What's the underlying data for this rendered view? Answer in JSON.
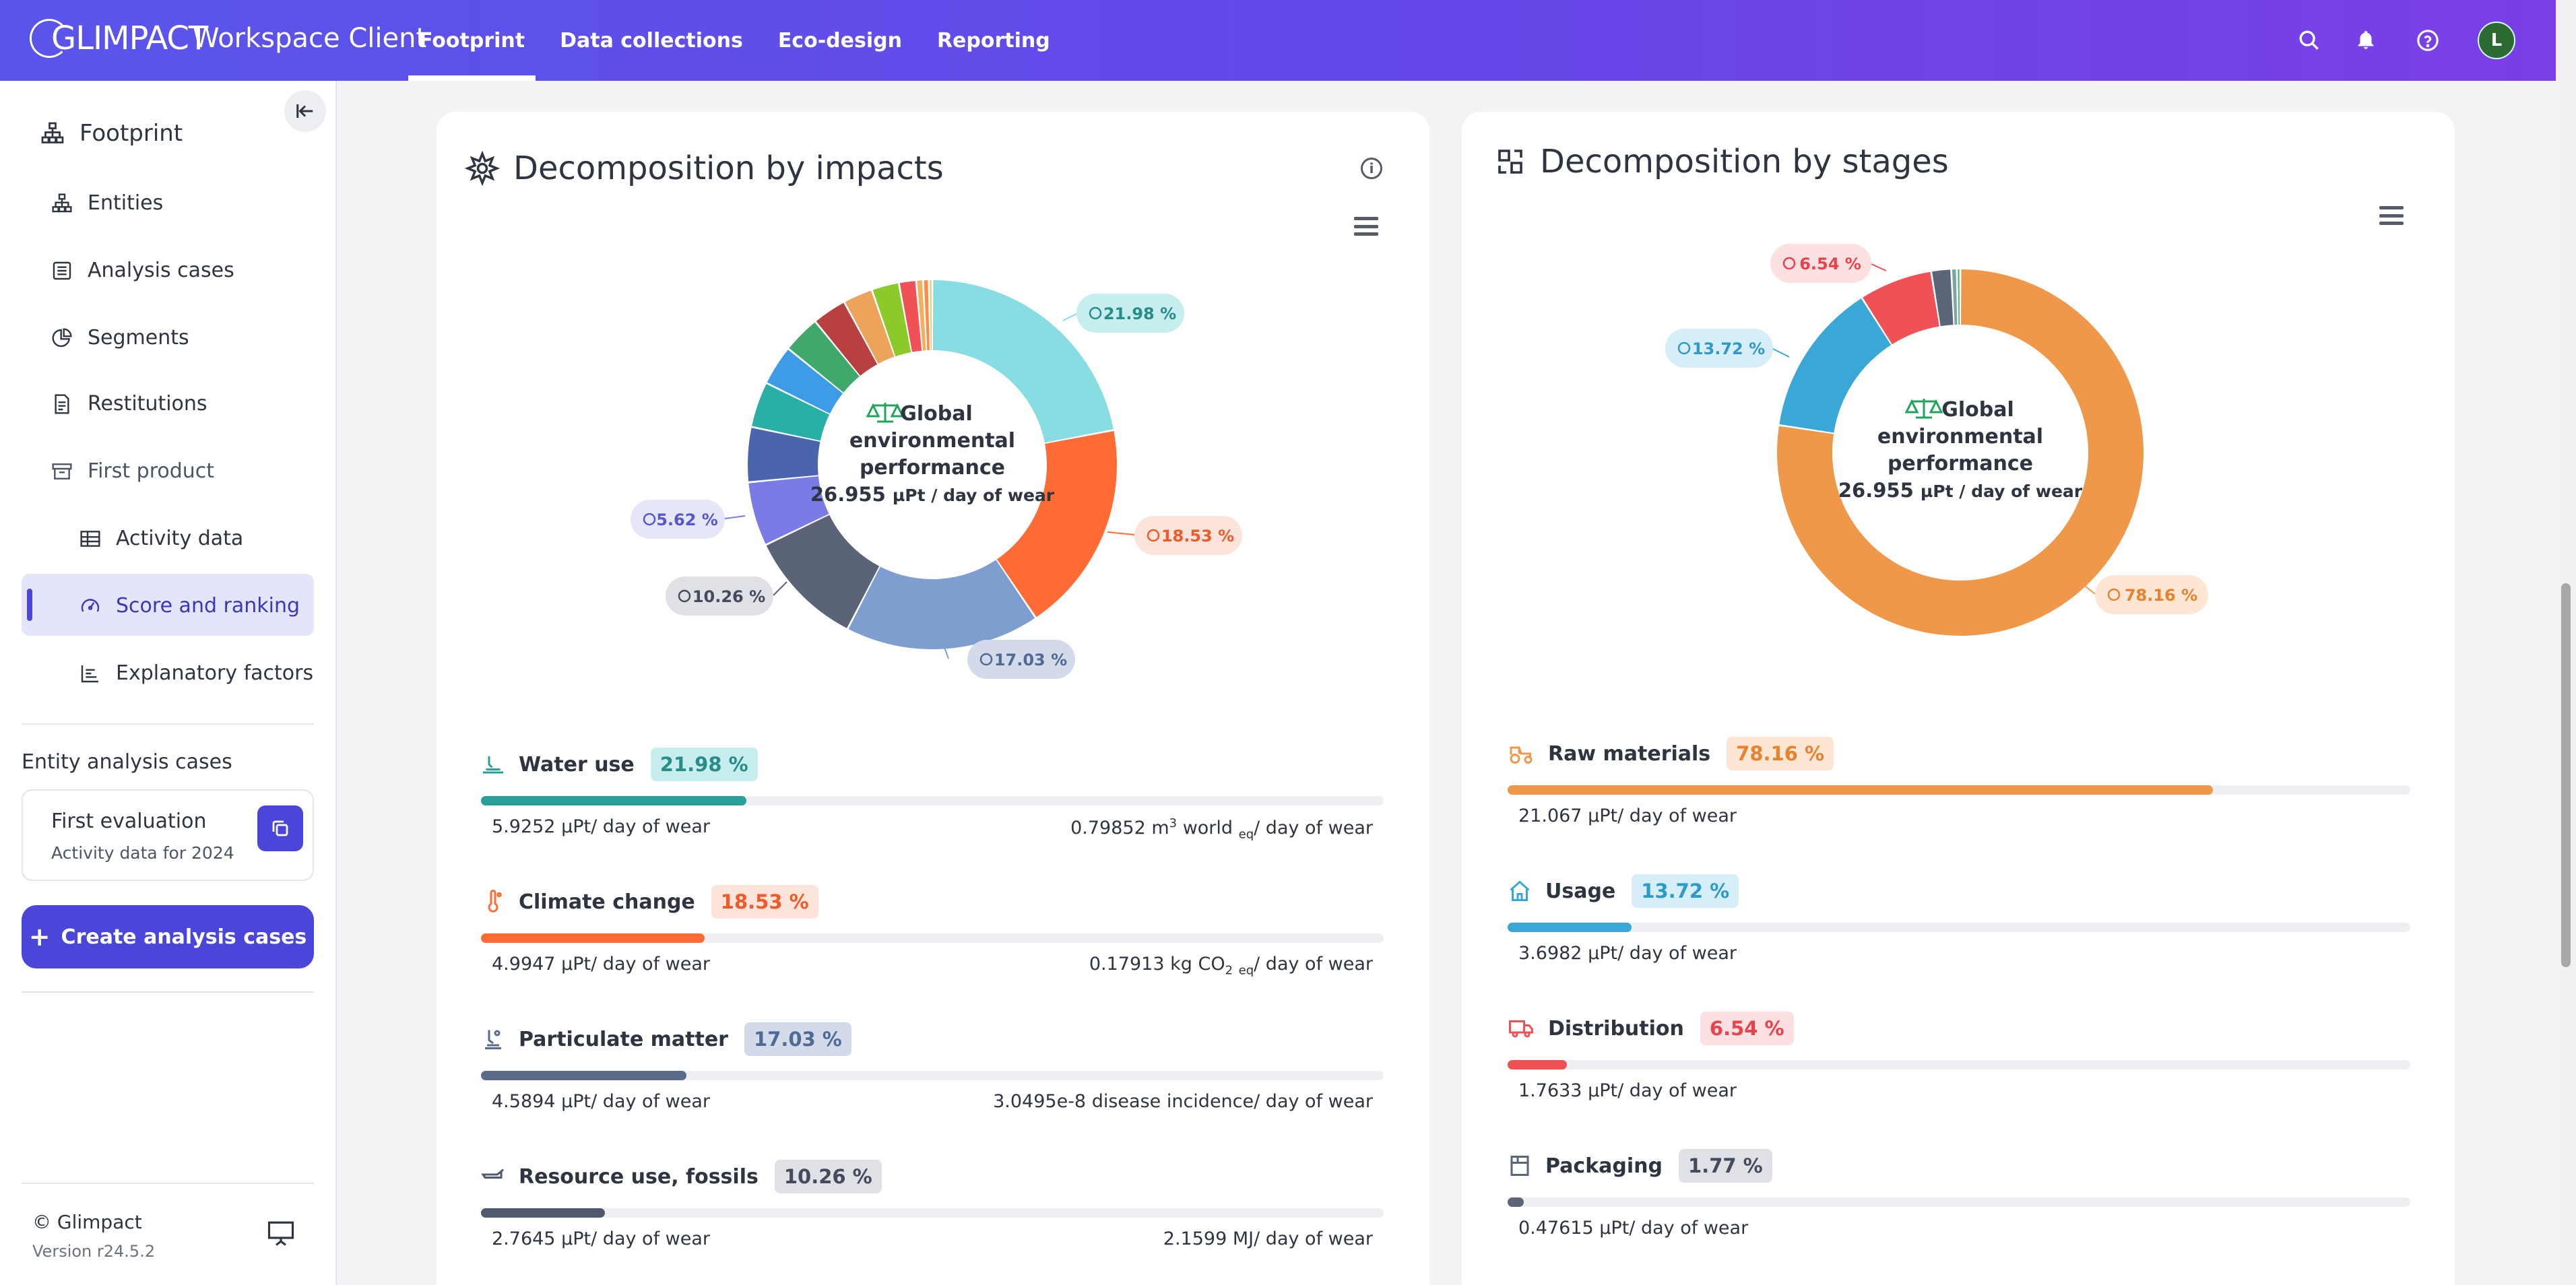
{
  "app": {
    "logo": "GLIMPACT",
    "title": "Workspace Client"
  },
  "nav": [
    {
      "label": "Footprint",
      "active": true
    },
    {
      "label": "Data collections",
      "active": false
    },
    {
      "label": "Eco-design",
      "active": false
    },
    {
      "label": "Reporting",
      "active": false
    }
  ],
  "user": {
    "initial": "L"
  },
  "sidebar": {
    "section_title": "Footprint",
    "items": [
      {
        "label": "Entities",
        "icon": "sitemap-icon"
      },
      {
        "label": "Analysis cases",
        "icon": "list-icon"
      },
      {
        "label": "Segments",
        "icon": "pie-icon"
      },
      {
        "label": "Restitutions",
        "icon": "report-icon"
      },
      {
        "label": "First product",
        "icon": "box-icon"
      },
      {
        "label": "Activity data",
        "icon": "table-icon"
      },
      {
        "label": "Score and ranking",
        "icon": "gauge-icon",
        "active": true
      },
      {
        "label": "Explanatory factors",
        "icon": "bar-chart-icon"
      }
    ],
    "entity_cases_title": "Entity analysis cases",
    "case": {
      "name": "First evaluation",
      "subtitle": "Activity data for 2024"
    },
    "create_button": "Create analysis cases",
    "copyright": "© Glimpact",
    "version": "Version r24.5.2"
  },
  "impacts": {
    "title": "Decomposition by impacts",
    "center": {
      "line1": "Global",
      "line2": "environmental",
      "line3": "performance",
      "value": "26.955",
      "unit": "µPt / day of wear"
    },
    "donut_labels": [
      {
        "text": "21.98 %"
      },
      {
        "text": "18.53 %"
      },
      {
        "text": "17.03 %"
      },
      {
        "text": "10.26 %"
      },
      {
        "text": "5.62 %"
      }
    ],
    "rows": [
      {
        "name": "Water use",
        "pct": "21.98 %",
        "pct_value": 21.98,
        "score": "5.9252",
        "score_unit": "µPt/ day of wear",
        "phys_value": "0.79852",
        "phys_unit_a": "m",
        "phys_sup": "3",
        "phys_unit_b": " world ",
        "phys_sub": "eq",
        "phys_suffix": "/ day of wear",
        "color": "#2a9f9a",
        "badge_bg": "#c6eeee",
        "badge_fg": "#2a8b8b"
      },
      {
        "name": "Climate change",
        "pct": "18.53 %",
        "pct_value": 18.53,
        "score": "4.9947",
        "score_unit": "µPt/ day of wear",
        "phys_value": "0.17913",
        "phys_unit_a": "kg CO",
        "phys_sub2": "2",
        "phys_sub": "eq",
        "phys_suffix": "/ day of wear",
        "color": "#ff6b35",
        "badge_bg": "#fde4da",
        "badge_fg": "#ee5a2a"
      },
      {
        "name": "Particulate matter",
        "pct": "17.03 %",
        "pct_value": 17.03,
        "score": "4.5894",
        "score_unit": "µPt/ day of wear",
        "phys_value": "3.0495e-8",
        "phys_unit_a": "disease incidence",
        "phys_suffix": "/ day of wear",
        "color": "#5a6a8a",
        "badge_bg": "#d3dbeb",
        "badge_fg": "#4f6a95"
      },
      {
        "name": "Resource use, fossils",
        "pct": "10.26 %",
        "pct_value": 10.26,
        "score": "2.7645",
        "score_unit": "µPt/ day of wear",
        "phys_value": "2.1599",
        "phys_unit_a": "MJ",
        "phys_suffix": "/ day of wear",
        "color": "#505a6e",
        "badge_bg": "#dfe1e6",
        "badge_fg": "#434b5c"
      }
    ]
  },
  "stages": {
    "title": "Decomposition by stages",
    "center": {
      "line1": "Global",
      "line2": "environmental",
      "line3": "performance",
      "value": "26.955",
      "unit": "µPt / day of wear"
    },
    "donut_labels": [
      {
        "text": "6.54 %"
      },
      {
        "text": "13.72 %"
      },
      {
        "text": "78.16 %"
      }
    ],
    "rows": [
      {
        "name": "Raw materials",
        "pct": "78.16 %",
        "pct_value": 78.16,
        "score": "21.067",
        "score_unit": "µPt/ day of wear",
        "color": "#f0984a",
        "badge_bg": "#fde6d3",
        "badge_fg": "#e7832f"
      },
      {
        "name": "Usage",
        "pct": "13.72 %",
        "pct_value": 13.72,
        "score": "3.6982",
        "score_unit": "µPt/ day of wear",
        "color": "#3aa8d6",
        "badge_bg": "#d5eef8",
        "badge_fg": "#2f99c7"
      },
      {
        "name": "Distribution",
        "pct": "6.54 %",
        "pct_value": 6.54,
        "score": "1.7633",
        "score_unit": "µPt/ day of wear",
        "color": "#ef5157",
        "badge_bg": "#fde0e1",
        "badge_fg": "#e8424a"
      },
      {
        "name": "Packaging",
        "pct": "1.77 %",
        "pct_value": 1.77,
        "score": "0.47615",
        "score_unit": "µPt/ day of wear",
        "color": "#5b6578",
        "badge_bg": "#dfe1e6",
        "badge_fg": "#434b5c"
      }
    ]
  },
  "chart_data": [
    {
      "type": "pie",
      "title": "Decomposition by impacts",
      "values": [
        21.98,
        18.53,
        17.03,
        10.26,
        5.62,
        4.8,
        4.0,
        3.5,
        3.3,
        3.0,
        2.6,
        2.4,
        1.5,
        0.6,
        0.5,
        0.3
      ],
      "colors": [
        "#88dde3",
        "#ff6b35",
        "#7e9ecf",
        "#5a6377",
        "#7b7be6",
        "#4b65ad",
        "#28b0a6",
        "#3d9be7",
        "#3fa96b",
        "#b84040",
        "#eba45a",
        "#8cc92a",
        "#ef5157",
        "#f2b15a",
        "#ff8a4a",
        "#f4c466"
      ]
    },
    {
      "type": "pie",
      "title": "Decomposition by stages",
      "values": [
        78.16,
        13.72,
        6.54,
        1.77,
        0.5,
        0.3
      ],
      "colors": [
        "#f0984a",
        "#3aa8d6",
        "#ef5157",
        "#5b6578",
        "#7aa8a0",
        "#4bb070"
      ]
    }
  ]
}
